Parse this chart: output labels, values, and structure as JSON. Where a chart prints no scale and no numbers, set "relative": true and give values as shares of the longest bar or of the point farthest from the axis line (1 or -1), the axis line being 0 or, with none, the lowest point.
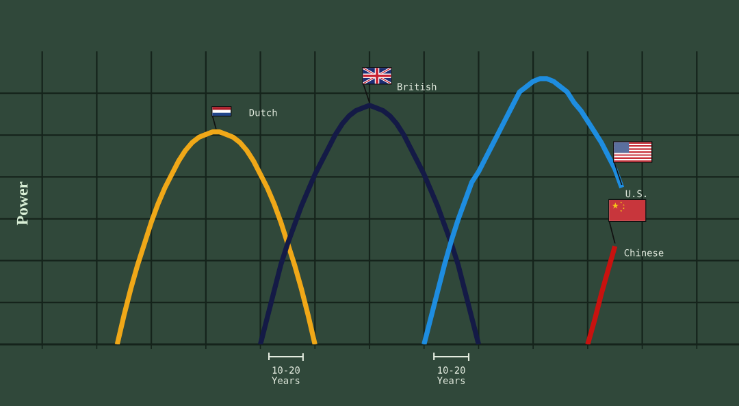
{
  "chart_data": {
    "type": "line",
    "relative": true,
    "ylabel": "Power",
    "grid": true,
    "categories": [
      null,
      null,
      null,
      null,
      null,
      null,
      null,
      null,
      null,
      null,
      null,
      null,
      null,
      null,
      null,
      null,
      null,
      null,
      null,
      null,
      null,
      null,
      null,
      null,
      null,
      null,
      null,
      null,
      null,
      null,
      null,
      null,
      null,
      null,
      null,
      null,
      null,
      null,
      null,
      null,
      null,
      null,
      null,
      null,
      null,
      null,
      null,
      null,
      null,
      null,
      null,
      null,
      null,
      null,
      null,
      null,
      null,
      null,
      null,
      null,
      null,
      null,
      null,
      null,
      null,
      null,
      null,
      null,
      null,
      null,
      null,
      null,
      null,
      null,
      null,
      null,
      null,
      null,
      null,
      null,
      null,
      null,
      null,
      null,
      null,
      null,
      null,
      null,
      null,
      null,
      null,
      null,
      null,
      null,
      null,
      null,
      null
    ],
    "series": [
      {
        "name": "Dutch",
        "color": "#f0a818",
        "values": [
          null,
          null,
          null,
          null,
          null,
          null,
          null,
          null,
          null,
          null,
          null,
          0,
          0.11,
          0.21,
          0.3,
          0.38,
          0.46,
          0.53,
          0.59,
          0.64,
          0.69,
          0.73,
          0.76,
          0.78,
          0.79,
          0.8,
          0.8,
          0.79,
          0.78,
          0.76,
          0.73,
          0.69,
          0.64,
          0.59,
          0.53,
          0.46,
          0.38,
          0.3,
          0.21,
          0.11,
          0,
          null,
          null,
          null,
          null,
          null,
          null,
          null,
          null,
          null,
          null,
          null,
          null,
          null,
          null,
          null,
          null,
          null,
          null,
          null,
          null,
          null,
          null,
          null,
          null,
          null,
          null,
          null,
          null,
          null,
          null,
          null,
          null,
          null,
          null,
          null,
          null,
          null,
          null,
          null,
          null,
          null,
          null,
          null,
          null,
          null,
          null,
          null,
          null,
          null,
          null,
          null,
          null,
          null,
          null,
          null,
          null
        ]
      },
      {
        "name": "British",
        "color": "#141a46",
        "values": [
          null,
          null,
          null,
          null,
          null,
          null,
          null,
          null,
          null,
          null,
          null,
          null,
          null,
          null,
          null,
          null,
          null,
          null,
          null,
          null,
          null,
          null,
          null,
          null,
          null,
          null,
          null,
          null,
          null,
          null,
          null,
          null,
          0,
          0.1,
          0.2,
          0.3,
          0.38,
          0.45,
          0.52,
          0.58,
          0.64,
          0.69,
          0.74,
          0.79,
          0.83,
          0.86,
          0.88,
          0.89,
          0.9,
          0.89,
          0.88,
          0.86,
          0.83,
          0.79,
          0.74,
          0.69,
          0.64,
          0.58,
          0.52,
          0.45,
          0.38,
          0.3,
          0.2,
          0.1,
          0,
          null,
          null,
          null,
          null,
          null,
          null,
          null,
          null,
          null,
          null,
          null,
          null,
          null,
          null,
          null,
          null,
          null,
          null,
          null,
          null,
          null,
          null,
          null,
          null,
          null,
          null,
          null,
          null,
          null,
          null,
          null,
          null
        ]
      },
      {
        "name": "U.S.",
        "color": "#1e8de0",
        "values": [
          null,
          null,
          null,
          null,
          null,
          null,
          null,
          null,
          null,
          null,
          null,
          null,
          null,
          null,
          null,
          null,
          null,
          null,
          null,
          null,
          null,
          null,
          null,
          null,
          null,
          null,
          null,
          null,
          null,
          null,
          null,
          null,
          null,
          null,
          null,
          null,
          null,
          null,
          null,
          null,
          null,
          null,
          null,
          null,
          null,
          null,
          null,
          null,
          null,
          null,
          null,
          null,
          null,
          null,
          null,
          null,
          0,
          0.1,
          0.2,
          0.3,
          0.39,
          0.47,
          0.54,
          0.61,
          0.65,
          0.7,
          0.75,
          0.8,
          0.85,
          0.9,
          0.95,
          0.97,
          0.99,
          1.0,
          1.0,
          0.99,
          0.97,
          0.95,
          0.91,
          0.88,
          0.84,
          0.8,
          0.76,
          0.71,
          0.66,
          0.59,
          null,
          null,
          null,
          null,
          null,
          null,
          null,
          null,
          null,
          null,
          null
        ]
      },
      {
        "name": "Chinese",
        "color": "#c8120f",
        "values": [
          null,
          null,
          null,
          null,
          null,
          null,
          null,
          null,
          null,
          null,
          null,
          null,
          null,
          null,
          null,
          null,
          null,
          null,
          null,
          null,
          null,
          null,
          null,
          null,
          null,
          null,
          null,
          null,
          null,
          null,
          null,
          null,
          null,
          null,
          null,
          null,
          null,
          null,
          null,
          null,
          null,
          null,
          null,
          null,
          null,
          null,
          null,
          null,
          null,
          null,
          null,
          null,
          null,
          null,
          null,
          null,
          null,
          null,
          null,
          null,
          null,
          null,
          null,
          null,
          null,
          null,
          null,
          null,
          null,
          null,
          null,
          null,
          null,
          null,
          null,
          null,
          null,
          null,
          null,
          null,
          0,
          0.09,
          0.19,
          0.28,
          0.37,
          null,
          null,
          null,
          null,
          null,
          null,
          null,
          null,
          null,
          null,
          null,
          null
        ]
      }
    ],
    "annotations": [
      "10-20\nYears",
      "10-20\nYears"
    ]
  }
}
